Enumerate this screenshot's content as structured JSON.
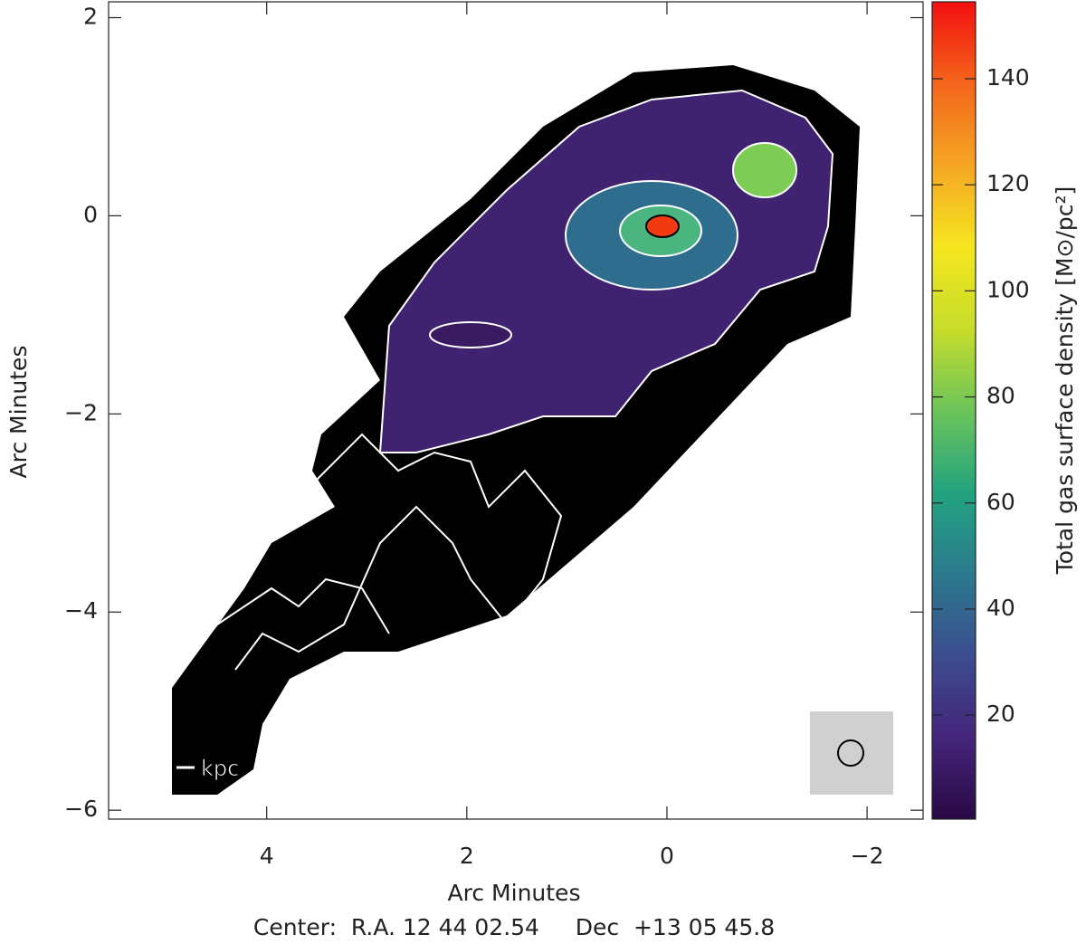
{
  "chart_data": {
    "type": "image",
    "xlabel": "Arc Minutes",
    "ylabel": "Arc Minutes",
    "xlim": [
      5.58,
      -2.56
    ],
    "ylim": [
      -6.09,
      2.16
    ],
    "xticks": [
      4,
      2,
      0,
      {
        "value": -2,
        "label": "−2"
      }
    ],
    "yticks": [
      2,
      0,
      {
        "value": -2,
        "label": "−2"
      },
      {
        "value": -4,
        "label": "−4"
      },
      {
        "value": -6,
        "label": "−6"
      }
    ],
    "colorbar": {
      "label": "Total gas surface density [M⊙/pc²]",
      "lim": [
        0.4,
        154.5
      ],
      "ticks": [
        20,
        40,
        60,
        80,
        100,
        120,
        140
      ],
      "colors": [
        "#2a0845",
        "#44257a",
        "#3b4d8f",
        "#2c7a8e",
        "#22a37f",
        "#6cc45a",
        "#c7dd2a",
        "#f5e61f",
        "#f5a623",
        "#f4651b",
        "#f20f0f"
      ]
    },
    "scale_label": "kpc",
    "footer": "Center:  R.A. 12 44 02.54     Dec  +13 05 45.8"
  }
}
